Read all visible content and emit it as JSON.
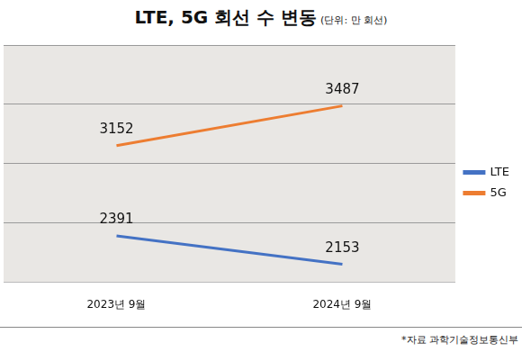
{
  "chart_data": {
    "type": "line",
    "title": "LTE, 5G 회선 수 변동",
    "subtitle": "(단위: 만 회선)",
    "note": "*자료 과학기술정보통신부",
    "categories": [
      "2023년 9월",
      "2024년 9월"
    ],
    "series": [
      {
        "name": "LTE",
        "color": "#4472c4",
        "values": [
          2391,
          2153
        ]
      },
      {
        "name": "5G",
        "color": "#ed7d31",
        "values": [
          3152,
          3487
        ]
      }
    ],
    "ylim": [
      2000,
      4000
    ],
    "yticks": [
      2000,
      2500,
      3000,
      3500,
      4000
    ],
    "grid": true,
    "legend": "right",
    "data_labels": true,
    "tick_labels": "x"
  }
}
